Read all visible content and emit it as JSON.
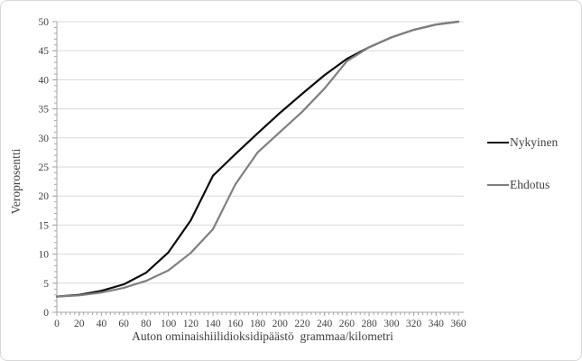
{
  "figure": {
    "background": "#ffffff",
    "border_color": "#d8d8d8"
  },
  "chart_data": {
    "type": "line",
    "title": "",
    "xlabel": "Auton ominaishiilidioksidipäästö  grammaa/kilometri",
    "ylabel": "Veroprosentti",
    "xlim": [
      0,
      360
    ],
    "ylim": [
      0,
      50
    ],
    "grid": "horizontal-major",
    "gridline_color": "#d9d9d9",
    "axis_line_color": "#a6a6a6",
    "tick_label_color": "#404040",
    "x_ticks": [
      0,
      20,
      40,
      60,
      80,
      100,
      120,
      140,
      160,
      180,
      200,
      220,
      240,
      260,
      280,
      300,
      320,
      340,
      360
    ],
    "x_minor_tick_step": 4,
    "y_ticks": [
      0,
      5,
      10,
      15,
      20,
      25,
      30,
      35,
      40,
      45,
      50
    ],
    "y_minor_tick_step": 1,
    "legend_position": "right",
    "x": [
      0,
      20,
      40,
      60,
      80,
      100,
      120,
      140,
      160,
      180,
      200,
      220,
      240,
      260,
      280,
      300,
      320,
      340,
      360
    ],
    "series": [
      {
        "name": "Nykyinen",
        "color": "#0d0d0d",
        "values": [
          2.7,
          3.0,
          3.7,
          4.8,
          6.8,
          10.3,
          15.8,
          23.5,
          27.2,
          30.8,
          34.3,
          37.6,
          40.8,
          43.6,
          45.6,
          47.3,
          48.6,
          49.5,
          50.0
        ]
      },
      {
        "name": "Ehdotus",
        "color": "#7f7f7f",
        "values": [
          2.7,
          2.9,
          3.4,
          4.2,
          5.4,
          7.2,
          10.2,
          14.3,
          22.0,
          27.5,
          31.0,
          34.5,
          38.5,
          43.2,
          45.6,
          47.3,
          48.6,
          49.5,
          50.0
        ]
      }
    ]
  }
}
